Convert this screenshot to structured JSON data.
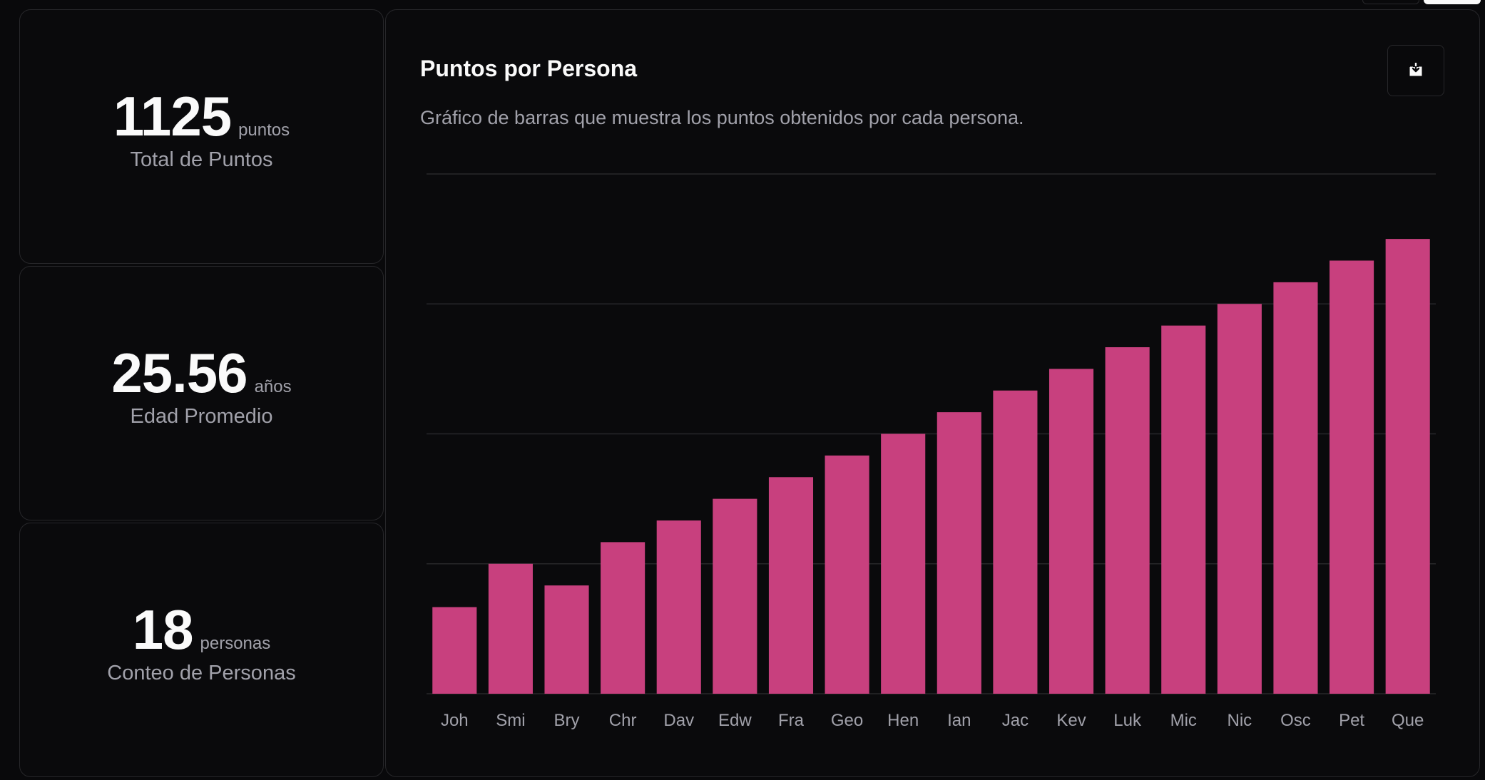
{
  "stats": {
    "total": {
      "value": "1125",
      "unit": "puntos",
      "label": "Total de Puntos"
    },
    "edad": {
      "value": "25.56",
      "unit": "años",
      "label": "Edad Promedio"
    },
    "conteo": {
      "value": "18",
      "unit": "personas",
      "label": "Conteo de Personas"
    }
  },
  "chart_card": {
    "title": "Puntos por Persona",
    "description": "Gráfico de barras que muestra los puntos obtenidos por cada persona.",
    "download_icon": "download-icon"
  },
  "colors": {
    "bar": "#c8407e",
    "grid": "#27272a",
    "tick": "#a1a1aa"
  },
  "chart_data": {
    "type": "bar",
    "categories": [
      "Joh",
      "Smi",
      "Bry",
      "Chr",
      "Dav",
      "Edw",
      "Fra",
      "Geo",
      "Hen",
      "Ian",
      "Jac",
      "Kev",
      "Luk",
      "Mic",
      "Nic",
      "Osc",
      "Pet",
      "Que"
    ],
    "values": [
      20,
      30,
      25,
      35,
      40,
      45,
      50,
      55,
      60,
      65,
      70,
      75,
      80,
      85,
      90,
      95,
      100,
      105
    ],
    "title": "Puntos por Persona",
    "xlabel": "",
    "ylabel": "",
    "ylim": [
      0,
      120
    ],
    "grid": true,
    "legend": "none"
  }
}
